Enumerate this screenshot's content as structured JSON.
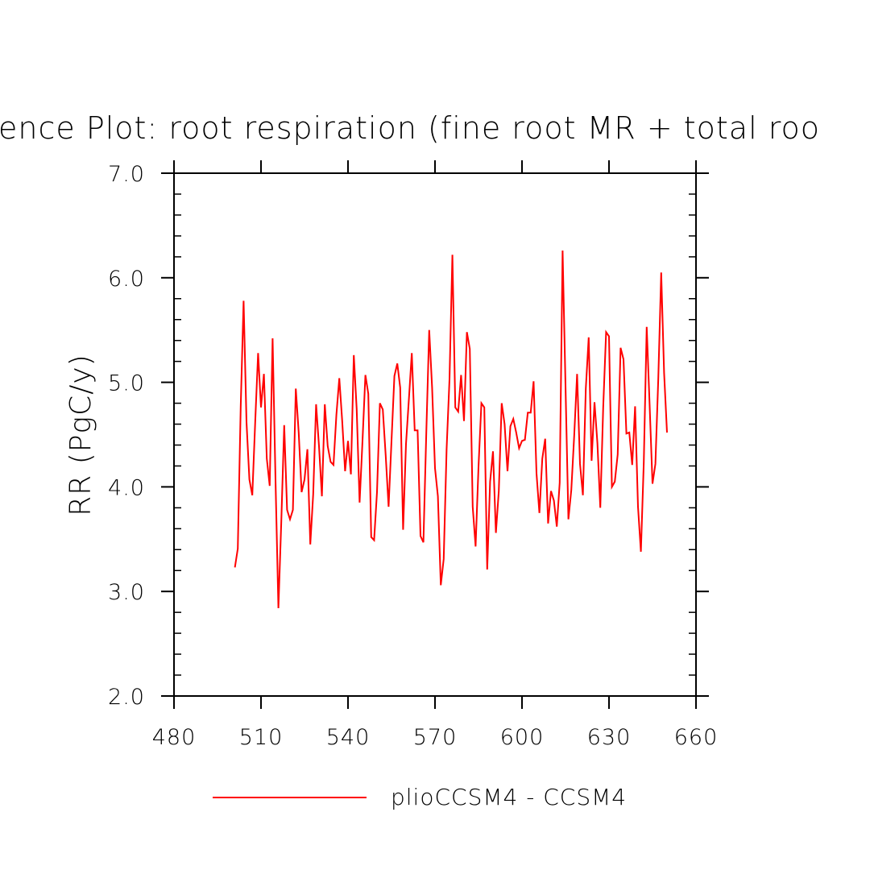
{
  "chart_data": {
    "type": "line",
    "title": "ence Plot: root respiration (fine root MR + total roo",
    "xlabel": "",
    "ylabel": "RR  (PgC/y)",
    "xlim": [
      480,
      660
    ],
    "ylim": [
      2.0,
      7.0
    ],
    "xticks": [
      "480",
      "510",
      "540",
      "570",
      "600",
      "630",
      "660"
    ],
    "yticks": [
      "2.0",
      "3.0",
      "4.0",
      "5.0",
      "6.0",
      "7.0"
    ],
    "grid": false,
    "legend_position": "bottom",
    "colors": {
      "series": "#ff0000",
      "axis": "#000000",
      "background": "#ffffff"
    },
    "series": [
      {
        "name": "plioCCSM4 - CCSM4",
        "x_start": 501,
        "x_step": 1,
        "values": [
          3.23,
          3.41,
          4.76,
          5.78,
          4.62,
          4.07,
          3.92,
          4.62,
          5.28,
          4.76,
          5.08,
          4.27,
          4.01,
          5.42,
          4.07,
          2.84,
          3.67,
          4.59,
          3.78,
          3.69,
          3.78,
          4.94,
          4.52,
          3.95,
          4.07,
          4.36,
          3.45,
          3.93,
          4.79,
          4.39,
          3.91,
          4.79,
          4.39,
          4.24,
          4.21,
          4.69,
          5.04,
          4.63,
          4.15,
          4.44,
          4.12,
          5.26,
          4.74,
          3.85,
          4.44,
          5.07,
          4.89,
          3.52,
          3.49,
          3.95,
          4.8,
          4.74,
          4.3,
          3.81,
          4.44,
          5.06,
          5.18,
          4.95,
          3.59,
          4.41,
          4.84,
          5.28,
          4.54,
          4.54,
          3.53,
          3.47,
          4.52,
          5.5,
          4.95,
          4.18,
          3.91,
          3.06,
          3.31,
          4.36,
          5.03,
          6.22,
          4.76,
          4.72,
          5.07,
          4.63,
          5.48,
          5.32,
          3.81,
          3.43,
          4.19,
          4.8,
          4.76,
          3.21,
          4.05,
          4.34,
          3.56,
          3.96,
          4.8,
          4.6,
          4.15,
          4.58,
          4.65,
          4.52,
          4.37,
          4.44,
          4.45,
          4.71,
          4.71,
          5.01,
          4.13,
          3.75,
          4.27,
          4.46,
          3.65,
          3.96,
          3.87,
          3.62,
          4.04,
          6.26,
          4.97,
          3.69,
          3.97,
          4.49,
          5.08,
          4.22,
          3.92,
          4.94,
          5.43,
          4.25,
          4.81,
          4.42,
          3.8,
          4.76,
          5.48,
          5.44,
          4.0,
          4.05,
          4.31,
          5.33,
          5.22,
          4.51,
          4.52,
          4.21,
          4.77,
          3.81,
          3.38,
          4.24,
          5.53,
          4.79,
          4.03,
          4.22,
          5.04,
          6.05,
          5.09,
          4.52
        ]
      }
    ]
  }
}
